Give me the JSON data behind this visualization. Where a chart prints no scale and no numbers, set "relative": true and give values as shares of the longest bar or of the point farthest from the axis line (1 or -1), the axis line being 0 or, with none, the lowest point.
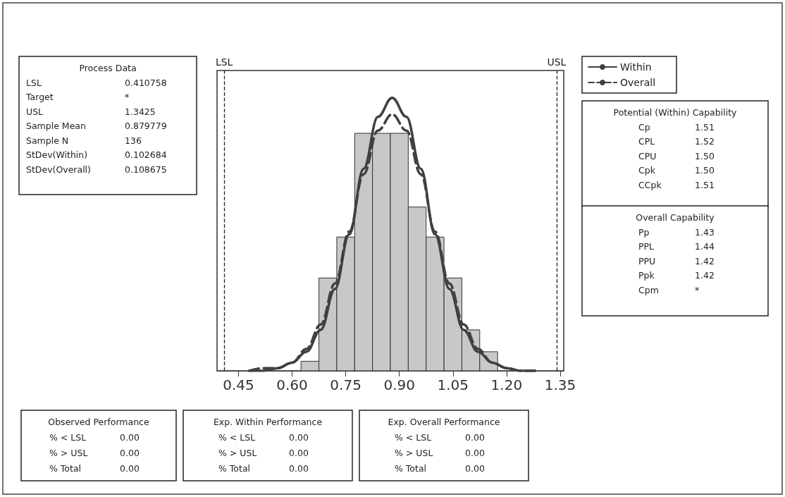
{
  "chart_data": {
    "type": "histogram",
    "relative": true,
    "bins": [
      0.625,
      0.675,
      0.725,
      0.775,
      0.825,
      0.875,
      0.925,
      0.975,
      1.025,
      1.075,
      1.125,
      1.175
    ],
    "values": [
      0.035,
      0.34,
      0.49,
      0.87,
      0.87,
      0.87,
      0.6,
      0.49,
      0.34,
      0.15,
      0.07
    ],
    "color": "#c8c8c8",
    "series": [
      {
        "name": "Within",
        "type": "line",
        "color": "#404040",
        "line_style": "solid",
        "x": [
          0.48,
          0.52,
          0.56,
          0.6,
          0.64,
          0.68,
          0.72,
          0.76,
          0.8,
          0.84,
          0.88,
          0.92,
          0.96,
          1.0,
          1.04,
          1.08,
          1.12,
          1.16,
          1.2,
          1.24,
          1.28
        ],
        "values": [
          0,
          0,
          0.01,
          0.03,
          0.07,
          0.15,
          0.3,
          0.5,
          0.74,
          0.93,
          1,
          0.93,
          0.74,
          0.5,
          0.3,
          0.15,
          0.07,
          0.03,
          0.01,
          0,
          0
        ]
      },
      {
        "name": "Overall",
        "type": "line",
        "color": "#404040",
        "line_style": "dashed",
        "x": [
          0.48,
          0.52,
          0.56,
          0.6,
          0.64,
          0.68,
          0.72,
          0.76,
          0.8,
          0.84,
          0.88,
          0.92,
          0.96,
          1.0,
          1.04,
          1.08,
          1.12,
          1.16,
          1.2,
          1.24,
          1.28
        ],
        "values": [
          0,
          0.01,
          0.01,
          0.03,
          0.08,
          0.17,
          0.32,
          0.51,
          0.72,
          0.88,
          0.94,
          0.88,
          0.72,
          0.51,
          0.32,
          0.17,
          0.08,
          0.03,
          0.01,
          0,
          0
        ]
      }
    ],
    "xlim": [
      0.39,
      1.36
    ],
    "xticks": [
      {
        "value": 0.45,
        "label": "0.45"
      },
      {
        "value": 0.6,
        "label": "0.60"
      },
      {
        "value": 0.75,
        "label": "0.75"
      },
      {
        "value": 0.9,
        "label": "0.90"
      },
      {
        "value": 1.05,
        "label": "1.05"
      },
      {
        "value": 1.2,
        "label": "1.20"
      },
      {
        "value": 1.35,
        "label": "1.35"
      }
    ],
    "ref_lines": [
      {
        "axis": "x",
        "value": 0.410758,
        "label": "LSL",
        "line_style": "dashed"
      },
      {
        "axis": "x",
        "value": 1.3425,
        "label": "USL",
        "line_style": "dashed"
      }
    ],
    "legend": "top right",
    "annotations": [
      "Process Data\nLSL\t0.410758\nTarget\t*\nUSL\t1.3425\nSample Mean\t0.879779\nSample N\t136\nStDev(Within)\t0.102684\nStDev(Overall)\t0.108675",
      "Potential (Within) Capability\nCp\t1.51\nCPL\t1.52\nCPU\t1.50\nCpk\t1.50\nCCpk\t1.51",
      "Overall Capability\nPp\t1.43\nPPL\t1.44\nPPU\t1.42\nPpk\t1.42\nCpm\t*",
      "Observed Performance\n% < LSL\t0.00\n% > USL\t0.00\n% Total\t0.00",
      "Exp. Within Performance\n% < LSL\t0.00\n% > USL\t0.00\n% Total\t0.00",
      "Exp. Overall Performance\n% < LSL\t0.00\n% > USL\t0.00\n% Total\t0.00"
    ]
  }
}
